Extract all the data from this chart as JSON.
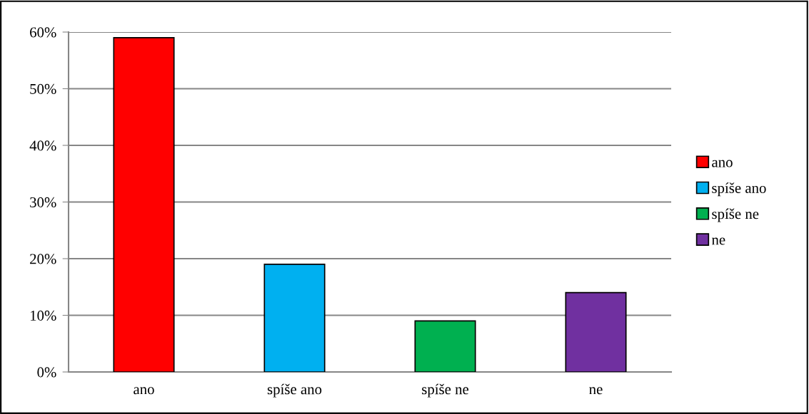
{
  "chart_data": {
    "type": "bar",
    "categories": [
      "ano",
      "spíše ano",
      "spíše ne",
      "ne"
    ],
    "series": [
      {
        "name": "ano",
        "color": "#ff0000",
        "values": [
          59,
          null,
          null,
          null
        ]
      },
      {
        "name": "spíše ano",
        "color": "#00b0f0",
        "values": [
          null,
          19,
          null,
          null
        ]
      },
      {
        "name": "spíše ne",
        "color": "#00b050",
        "values": [
          null,
          null,
          9,
          null
        ]
      },
      {
        "name": "ne",
        "color": "#7030a0",
        "values": [
          null,
          null,
          null,
          14
        ]
      }
    ],
    "ylim": [
      0,
      60
    ],
    "yticks": [
      {
        "value": 0,
        "label": "0%"
      },
      {
        "value": 10,
        "label": "10%"
      },
      {
        "value": 20,
        "label": "20%"
      },
      {
        "value": 30,
        "label": "30%"
      },
      {
        "value": 40,
        "label": "40%"
      },
      {
        "value": 50,
        "label": "50%"
      },
      {
        "value": 60,
        "label": "60%"
      }
    ],
    "grid": "y",
    "legend": "right"
  }
}
